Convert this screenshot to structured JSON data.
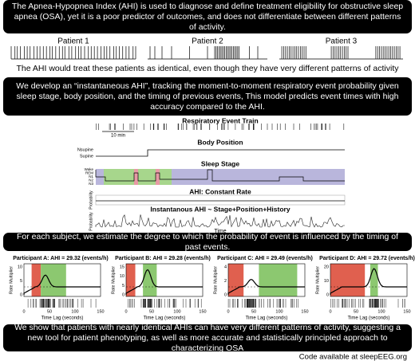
{
  "banners": [
    "The Apnea-Hypopnea Index (AHI) is used to diagnose and define treatment eligibility for obstructive sleep apnea (OSA), yet it is a poor predictor of outcomes, and does not differentiate between different patterns of activity.",
    "We develop an “instantaneous AHI”, tracking the moment-to-moment respiratory event probability given sleep stage, body position, and the timing of previous events, This model predicts event times with high accuracy compared to the AHI.",
    "For each subject, we estimate the degree to which the probability of event is influenced by the timing of past events.",
    "We show that patients with nearly identical AHIs can have very different patterns of activity, suggesting a new tool for patient phenotyping, as well as more accurate and statistically principled approach to characterizing OSA"
  ],
  "patients": {
    "labels": [
      "Patient 1",
      "Patient 2",
      "Patient 3"
    ],
    "caption": "The AHI would treat these patients as identical, even though they have very different patterns of activity"
  },
  "model_figure": {
    "event_train_title": "Respiratory Event Train",
    "scale_label": "10 min",
    "body_position_title": "Body Position",
    "position_labels": [
      "Nsupine",
      "Supine"
    ],
    "sleep_stage_title": "Sleep Stage",
    "stage_labels": [
      "Wake",
      "REM",
      "N1",
      "N2",
      "N3"
    ],
    "constant_rate_title": "AHI: Constant Rate",
    "instantaneous_title": "Instantanous AHI ~ Stage+Position+History",
    "y_label": "Probability",
    "x_label": "Time"
  },
  "participants": [
    {
      "title": "Participant A: AHI = 29.32 (events/h)",
      "y_label": "Rate Multiplier",
      "x_label": "Time Lag (seconds)",
      "x_ticks": [
        "0",
        "50",
        "100",
        "150"
      ],
      "y_ticks": [
        "0",
        "5",
        "10"
      ]
    },
    {
      "title": "Participant B: AHI = 29.28 (events/h)",
      "y_label": "Rate Multiplier",
      "x_label": "Time Lag (seconds)",
      "x_ticks": [
        "0",
        "50",
        "100",
        "150"
      ],
      "y_ticks": [
        "0",
        "5",
        "10",
        "15"
      ]
    },
    {
      "title": "Participant C: AHI = 29.49 (events/h)",
      "y_label": "Rate Multiplier",
      "x_label": "Time Lag (seconds)",
      "x_ticks": [
        "0",
        "50",
        "100",
        "150"
      ],
      "y_ticks": [
        "0",
        "2",
        "4"
      ]
    },
    {
      "title": "Participant D: AHI = 29.72 (events/h)",
      "y_label": "Rate Multiplier",
      "x_label": "Time Lag (seconds)",
      "x_ticks": [
        "0",
        "50",
        "100",
        "150"
      ],
      "y_ticks": [
        "0",
        "10",
        "20"
      ]
    }
  ],
  "footer": "Code available at sleepEEG.org"
}
